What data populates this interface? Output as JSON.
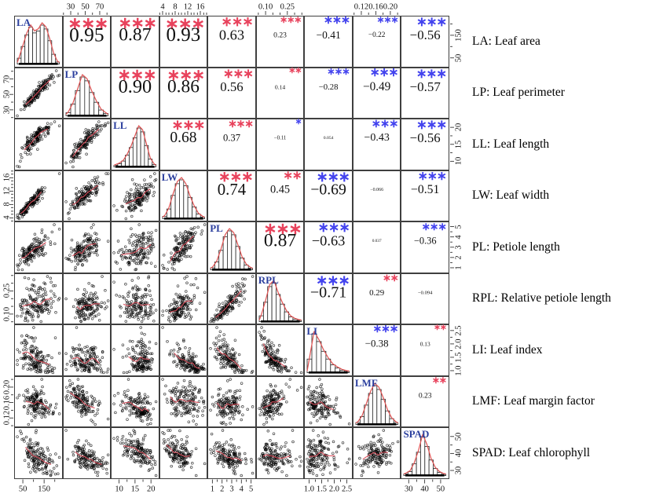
{
  "chart_data": {
    "type": "scatterplot-matrix",
    "title": "",
    "description": "9x9 pairs plot of leaf traits: lower triangle scatterplots with red smooth lines, diagonal histograms with red density curves, upper triangle Pearson correlations with significance stars (red = positive, blue = negative)",
    "colors": {
      "positive_star": "#e8425c",
      "negative_star": "#4343ee",
      "variable_label": "#2b3f9e",
      "density_line": "#e05252",
      "smooth_line": "#d94f5c",
      "grid": "#3f3f3f",
      "point": "#000000"
    },
    "variables": [
      {
        "code": "LA",
        "label": "LA: Leaf area",
        "ticks": {
          "labels": [
            "50",
            "150"
          ],
          "pos": [
            0.18,
            0.62
          ],
          "minor": [
            0.4,
            0.84
          ]
        }
      },
      {
        "code": "LP",
        "label": "LP: Leaf perimeter",
        "ticks": {
          "labels": [
            "30",
            "50",
            "70"
          ],
          "pos": [
            0.17,
            0.47,
            0.77
          ],
          "minor": [
            0.02,
            0.32,
            0.62,
            0.92
          ]
        }
      },
      {
        "code": "LL",
        "label": "LL: Leaf length",
        "ticks": {
          "labels": [
            "10",
            "15",
            "20"
          ],
          "pos": [
            0.17,
            0.5,
            0.83
          ],
          "minor": [
            0.335,
            0.665
          ]
        }
      },
      {
        "code": "LW",
        "label": "LW: Leaf width",
        "ticks": {
          "labels": [
            "4",
            "8",
            "12",
            "16"
          ],
          "pos": [
            0.07,
            0.33,
            0.59,
            0.85
          ],
          "minor": [
            0.01,
            0.14,
            0.2,
            0.27,
            0.4,
            0.46,
            0.53,
            0.66,
            0.72,
            0.79,
            0.92,
            0.98
          ]
        }
      },
      {
        "code": "PL",
        "label": "PL: Petiole length",
        "ticks": {
          "labels": [
            "1",
            "2",
            "3",
            "4",
            "5"
          ],
          "pos": [
            0.1,
            0.3,
            0.5,
            0.7,
            0.9
          ],
          "minor": [
            0.2,
            0.4,
            0.6,
            0.8
          ]
        }
      },
      {
        "code": "RPL",
        "label": "RPL: Relative petiole length",
        "ticks": {
          "labels": [
            "0.10",
            "0.25"
          ],
          "pos": [
            0.2,
            0.65
          ],
          "minor": [
            0.05,
            0.35,
            0.5,
            0.8,
            0.95
          ]
        }
      },
      {
        "code": "LI",
        "label": "LI: Leaf index",
        "ticks": {
          "labels": [
            "1.0",
            "1.5",
            "2.0",
            "2.5"
          ],
          "pos": [
            0.1,
            0.36,
            0.62,
            0.88
          ],
          "minor": [
            0.23,
            0.49,
            0.75
          ]
        }
      },
      {
        "code": "LMF",
        "label": "LMF: Leaf margin factor",
        "ticks": {
          "labels": [
            "0.12",
            "0.16",
            "0.20"
          ],
          "pos": [
            0.18,
            0.48,
            0.78
          ],
          "minor": [
            0.03,
            0.33,
            0.63,
            0.93
          ]
        }
      },
      {
        "code": "SPAD",
        "label": "SPAD: Leaf chlorophyll",
        "ticks": {
          "labels": [
            "30",
            "40",
            "50"
          ],
          "pos": [
            0.16,
            0.49,
            0.82
          ],
          "minor": [
            0.325,
            0.655
          ]
        }
      }
    ],
    "correlations": [
      {
        "row": "LA",
        "col": "LP",
        "value": "0.95",
        "r": 0.95,
        "sig": "***"
      },
      {
        "row": "LA",
        "col": "LL",
        "value": "0.87",
        "r": 0.87,
        "sig": "***"
      },
      {
        "row": "LA",
        "col": "LW",
        "value": "0.93",
        "r": 0.93,
        "sig": "***"
      },
      {
        "row": "LA",
        "col": "PL",
        "value": "0.63",
        "r": 0.63,
        "sig": "***"
      },
      {
        "row": "LA",
        "col": "RPL",
        "value": "0.23",
        "r": 0.23,
        "sig": "***"
      },
      {
        "row": "LA",
        "col": "LI",
        "value": "−0.41",
        "r": -0.41,
        "sig": "***"
      },
      {
        "row": "LA",
        "col": "LMF",
        "value": "−0.22",
        "r": -0.22,
        "sig": "***"
      },
      {
        "row": "LA",
        "col": "SPAD",
        "value": "−0.56",
        "r": -0.56,
        "sig": "***"
      },
      {
        "row": "LP",
        "col": "LL",
        "value": "0.90",
        "r": 0.9,
        "sig": "***"
      },
      {
        "row": "LP",
        "col": "LW",
        "value": "0.86",
        "r": 0.86,
        "sig": "***"
      },
      {
        "row": "LP",
        "col": "PL",
        "value": "0.56",
        "r": 0.56,
        "sig": "***"
      },
      {
        "row": "LP",
        "col": "RPL",
        "value": "0.14",
        "r": 0.14,
        "sig": "**"
      },
      {
        "row": "LP",
        "col": "LI",
        "value": "−0.28",
        "r": -0.28,
        "sig": "***"
      },
      {
        "row": "LP",
        "col": "LMF",
        "value": "−0.49",
        "r": -0.49,
        "sig": "***"
      },
      {
        "row": "LP",
        "col": "SPAD",
        "value": "−0.57",
        "r": -0.57,
        "sig": "***"
      },
      {
        "row": "LL",
        "col": "LW",
        "value": "0.68",
        "r": 0.68,
        "sig": "***"
      },
      {
        "row": "LL",
        "col": "PL",
        "value": "0.37",
        "r": 0.37,
        "sig": "***"
      },
      {
        "row": "LL",
        "col": "RPL",
        "value": "−0.11",
        "r": -0.11,
        "sig": "*"
      },
      {
        "row": "LL",
        "col": "LI",
        "value": "0.054",
        "r": 0.054,
        "sig": ""
      },
      {
        "row": "LL",
        "col": "LMF",
        "value": "−0.43",
        "r": -0.43,
        "sig": "***"
      },
      {
        "row": "LL",
        "col": "SPAD",
        "value": "−0.56",
        "r": -0.56,
        "sig": "***"
      },
      {
        "row": "LW",
        "col": "PL",
        "value": "0.74",
        "r": 0.74,
        "sig": "***"
      },
      {
        "row": "LW",
        "col": "RPL",
        "value": "0.45",
        "r": 0.45,
        "sig": "**"
      },
      {
        "row": "LW",
        "col": "LI",
        "value": "−0.69",
        "r": -0.69,
        "sig": "***"
      },
      {
        "row": "LW",
        "col": "LMF",
        "value": "−0.066",
        "r": -0.066,
        "sig": ""
      },
      {
        "row": "LW",
        "col": "SPAD",
        "value": "−0.51",
        "r": -0.51,
        "sig": "***"
      },
      {
        "row": "PL",
        "col": "RPL",
        "value": "0.87",
        "r": 0.87,
        "sig": "***"
      },
      {
        "row": "PL",
        "col": "LI",
        "value": "−0.63",
        "r": -0.63,
        "sig": "***"
      },
      {
        "row": "PL",
        "col": "LMF",
        "value": "0.037",
        "r": 0.037,
        "sig": ""
      },
      {
        "row": "PL",
        "col": "SPAD",
        "value": "−0.36",
        "r": -0.36,
        "sig": "***"
      },
      {
        "row": "RPL",
        "col": "LI",
        "value": "−0.71",
        "r": -0.71,
        "sig": "***"
      },
      {
        "row": "RPL",
        "col": "LMF",
        "value": "0.29",
        "r": 0.29,
        "sig": "**"
      },
      {
        "row": "RPL",
        "col": "SPAD",
        "value": "−0.094",
        "r": -0.094,
        "sig": ""
      },
      {
        "row": "LI",
        "col": "LMF",
        "value": "−0.38",
        "r": -0.38,
        "sig": "***"
      },
      {
        "row": "LI",
        "col": "SPAD",
        "value": "0.13",
        "r": 0.13,
        "sig": "**"
      },
      {
        "row": "LMF",
        "col": "SPAD",
        "value": "0.23",
        "r": 0.23,
        "sig": "**"
      }
    ],
    "histograms": {
      "LA": [
        0.15,
        0.45,
        0.75,
        0.95,
        0.8,
        0.85,
        1.0,
        0.9,
        0.6,
        0.25,
        0.05
      ],
      "LP": [
        0.08,
        0.3,
        0.65,
        1.0,
        0.9,
        0.6,
        0.35,
        0.15,
        0.06
      ],
      "LL": [
        0.04,
        0.08,
        0.15,
        0.3,
        0.5,
        0.75,
        1.0,
        0.9,
        0.55,
        0.2,
        0.06
      ],
      "LW": [
        0.06,
        0.25,
        0.6,
        0.9,
        1.0,
        0.85,
        0.55,
        0.3,
        0.12,
        0.04
      ],
      "PL": [
        0.05,
        0.2,
        0.5,
        0.85,
        1.0,
        0.9,
        0.6,
        0.3,
        0.12,
        0.04
      ],
      "RPL": [
        0.15,
        0.5,
        0.9,
        1.0,
        0.7,
        0.45,
        0.25,
        0.12,
        0.06,
        0.03
      ],
      "LI": [
        0.35,
        1.0,
        0.8,
        0.55,
        0.35,
        0.2,
        0.12,
        0.06,
        0.03
      ],
      "LMF": [
        0.05,
        0.2,
        0.5,
        0.8,
        1.0,
        0.9,
        0.65,
        0.35,
        0.15,
        0.05
      ],
      "SPAD": [
        0.04,
        0.1,
        0.3,
        0.6,
        1.0,
        0.75,
        0.4,
        0.18,
        0.08,
        0.03
      ]
    }
  }
}
